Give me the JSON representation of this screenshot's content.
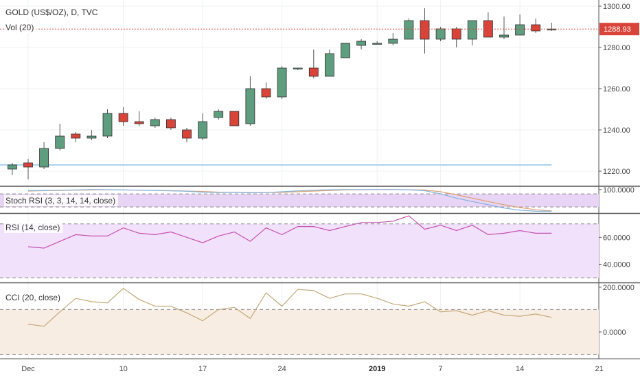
{
  "header": {
    "title": "GOLD (US$/OZ), D, TVC",
    "vol_label": "Vol (20)"
  },
  "chart_data": [
    {
      "type": "candlestick",
      "name": "price",
      "title": "GOLD (US$/OZ), D, TVC",
      "ylim": [
        1213,
        1303
      ],
      "yticks": [
        1220,
        1240,
        1260,
        1280,
        1300
      ],
      "ytick_labels": [
        "1220.00",
        "1240.00",
        "1260.00",
        "1280.00",
        "1300.00"
      ],
      "last_price_label": "1288.93",
      "last_price": 1288.93,
      "support_line": 1223,
      "colors": {
        "up": "#5e9e7f",
        "down": "#d9443a",
        "wick": "#555555",
        "last_price": "#d9443a",
        "support": "#a8d4ec"
      },
      "candles": [
        {
          "x": -1,
          "o": 1221,
          "h": 1224,
          "l": 1218,
          "c": 1223
        },
        {
          "x": 0,
          "o": 1224,
          "h": 1226,
          "l": 1216,
          "c": 1222
        },
        {
          "x": 1,
          "o": 1222,
          "h": 1234,
          "l": 1221,
          "c": 1231
        },
        {
          "x": 2,
          "o": 1231,
          "h": 1243,
          "l": 1230,
          "c": 1237
        },
        {
          "x": 3,
          "o": 1238,
          "h": 1239,
          "l": 1234,
          "c": 1236
        },
        {
          "x": 4,
          "o": 1236,
          "h": 1240,
          "l": 1235,
          "c": 1237
        },
        {
          "x": 5,
          "o": 1237,
          "h": 1250,
          "l": 1236,
          "c": 1248
        },
        {
          "x": 6,
          "o": 1248,
          "h": 1251,
          "l": 1242,
          "c": 1244
        },
        {
          "x": 7,
          "o": 1244,
          "h": 1249,
          "l": 1242,
          "c": 1243
        },
        {
          "x": 8,
          "o": 1242,
          "h": 1246,
          "l": 1241,
          "c": 1245
        },
        {
          "x": 9,
          "o": 1245,
          "h": 1246,
          "l": 1240,
          "c": 1241
        },
        {
          "x": 10,
          "o": 1240,
          "h": 1241,
          "l": 1234,
          "c": 1236
        },
        {
          "x": 11,
          "o": 1236,
          "h": 1248,
          "l": 1235,
          "c": 1244
        },
        {
          "x": 12,
          "o": 1246,
          "h": 1250,
          "l": 1245,
          "c": 1249
        },
        {
          "x": 13,
          "o": 1249,
          "h": 1249,
          "l": 1242,
          "c": 1242
        },
        {
          "x": 14,
          "o": 1243,
          "h": 1266,
          "l": 1242,
          "c": 1260
        },
        {
          "x": 15,
          "o": 1260,
          "h": 1263,
          "l": 1255,
          "c": 1256
        },
        {
          "x": 16,
          "o": 1256,
          "h": 1271,
          "l": 1255,
          "c": 1270
        },
        {
          "x": 17,
          "o": 1270,
          "h": 1270,
          "l": 1269,
          "c": 1270
        },
        {
          "x": 18,
          "o": 1270,
          "h": 1279,
          "l": 1265,
          "c": 1266
        },
        {
          "x": 19,
          "o": 1266,
          "h": 1279,
          "l": 1266,
          "c": 1277
        },
        {
          "x": 20,
          "o": 1275,
          "h": 1282,
          "l": 1275,
          "c": 1282
        },
        {
          "x": 21,
          "o": 1281,
          "h": 1284,
          "l": 1279,
          "c": 1283
        },
        {
          "x": 22,
          "o": 1282,
          "h": 1283,
          "l": 1282,
          "c": 1282
        },
        {
          "x": 23,
          "o": 1282,
          "h": 1287,
          "l": 1281,
          "c": 1284
        },
        {
          "x": 24,
          "o": 1284,
          "h": 1294,
          "l": 1284,
          "c": 1293
        },
        {
          "x": 25,
          "o": 1293,
          "h": 1299,
          "l": 1277,
          "c": 1284
        },
        {
          "x": 26,
          "o": 1284,
          "h": 1290,
          "l": 1283,
          "c": 1289
        },
        {
          "x": 27,
          "o": 1289,
          "h": 1290,
          "l": 1280,
          "c": 1284
        },
        {
          "x": 28,
          "o": 1284,
          "h": 1293,
          "l": 1281,
          "c": 1293
        },
        {
          "x": 29,
          "o": 1293,
          "h": 1297,
          "l": 1285,
          "c": 1285
        },
        {
          "x": 30,
          "o": 1285,
          "h": 1295,
          "l": 1284,
          "c": 1286
        },
        {
          "x": 31,
          "o": 1286,
          "h": 1296,
          "l": 1286,
          "c": 1291
        },
        {
          "x": 32,
          "o": 1291,
          "h": 1294,
          "l": 1287,
          "c": 1288
        },
        {
          "x": 33,
          "o": 1288.9,
          "h": 1292,
          "l": 1288,
          "c": 1288.93
        }
      ]
    },
    {
      "type": "line",
      "name": "stoch_rsi",
      "label": "Stoch RSI (3, 3, 14, 14, close)",
      "ylim": [
        -5,
        112
      ],
      "yticks": [
        100
      ],
      "ytick_labels": [
        "100.0000"
      ],
      "bands": [
        80,
        20
      ],
      "colors": {
        "k": "#7fb2dd",
        "d": "#e0a070",
        "fill": "#e8d4f5"
      },
      "series": [
        {
          "values": [
            95,
            96,
            97,
            98,
            100,
            99,
            98,
            97,
            96,
            94,
            92,
            88,
            86,
            87,
            85,
            86,
            90,
            94,
            97,
            99,
            100,
            100,
            100,
            100,
            99,
            95,
            80,
            60,
            45,
            30,
            15,
            5,
            0,
            0
          ]
        },
        {
          "values": [
            93,
            95,
            96,
            97,
            98,
            99,
            98,
            97,
            96,
            95,
            93,
            91,
            88,
            87,
            86,
            86,
            87,
            90,
            93,
            96,
            98,
            99,
            100,
            100,
            99,
            98,
            90,
            76,
            60,
            45,
            30,
            17,
            7,
            2
          ]
        }
      ]
    },
    {
      "type": "line",
      "name": "rsi",
      "label": "RSI (14, close)",
      "ylim": [
        27,
        77
      ],
      "yticks": [
        40,
        60
      ],
      "ytick_labels": [
        "40.0000",
        "60.0000"
      ],
      "bands": [
        70,
        30
      ],
      "colors": {
        "line": "#c84fb0",
        "fill": "#f1e1fb"
      },
      "values": [
        53,
        52,
        57,
        62,
        61,
        61,
        67,
        63,
        62,
        64,
        60,
        56,
        61,
        64,
        57,
        67,
        62,
        68,
        68,
        65,
        68,
        71,
        71,
        72,
        76,
        66,
        69,
        65,
        69,
        62,
        63,
        65,
        63,
        63
      ]
    },
    {
      "type": "line",
      "name": "cci",
      "label": "CCI (20, close)",
      "ylim": [
        -120,
        215
      ],
      "yticks": [
        200,
        0
      ],
      "ytick_labels": [
        "200.0000",
        "0.0000"
      ],
      "bands": [
        100,
        -100
      ],
      "colors": {
        "line": "#c4a878",
        "fill": "#f7ede2"
      },
      "values": [
        35,
        25,
        90,
        150,
        135,
        130,
        195,
        145,
        115,
        115,
        85,
        50,
        100,
        110,
        60,
        175,
        115,
        190,
        185,
        150,
        170,
        170,
        150,
        125,
        115,
        135,
        90,
        95,
        75,
        95,
        75,
        70,
        80,
        65
      ]
    }
  ],
  "x_axis": {
    "tick_labels": [
      {
        "x": 0,
        "label": "Dec",
        "bold": false
      },
      {
        "x": 6,
        "label": "10",
        "bold": false
      },
      {
        "x": 11,
        "label": "17",
        "bold": false
      },
      {
        "x": 16,
        "label": "24",
        "bold": false
      },
      {
        "x": 22,
        "label": "2019",
        "bold": true
      },
      {
        "x": 26,
        "label": "7",
        "bold": false
      },
      {
        "x": 31,
        "label": "14",
        "bold": false
      },
      {
        "x": 36,
        "label": "21",
        "bold": false
      }
    ]
  }
}
